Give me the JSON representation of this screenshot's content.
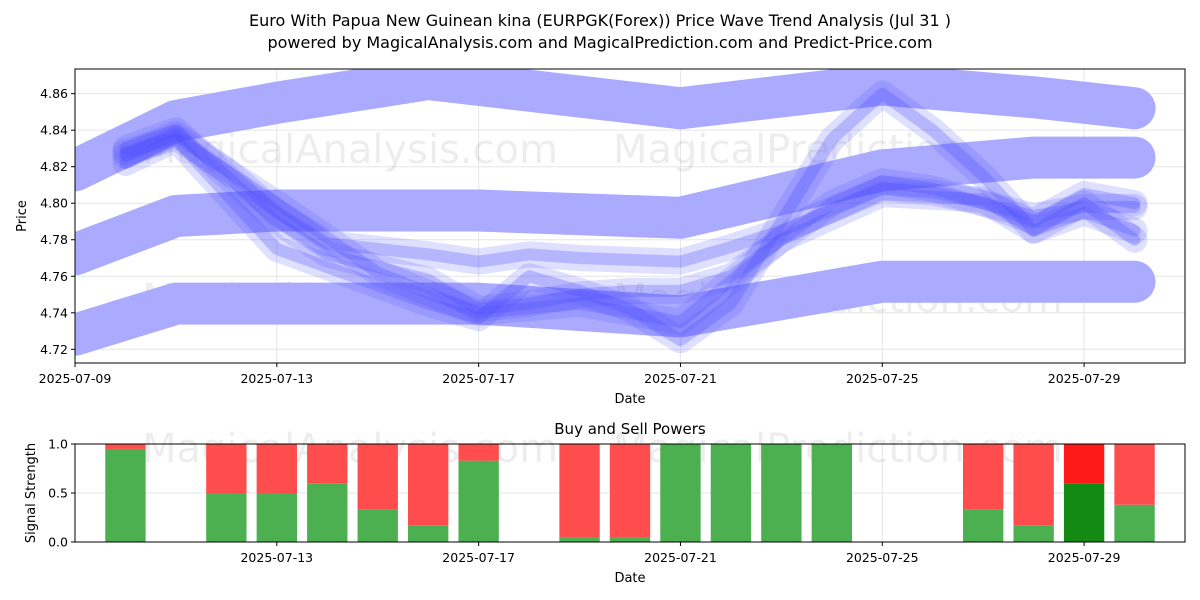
{
  "title_line1": "Euro With Papua New Guinean kina (EURPGK(Forex)) Price Wave Trend Analysis (Jul 31 )",
  "title_line2": "powered by MagicalAnalysis.com and MagicalPrediction.com and Predict-Price.com",
  "watermarks": [
    "MagicalAnalysis.com",
    "MagicalPrediction.com"
  ],
  "colors": {
    "band": "#aaaaff",
    "wave": "#4d4dff",
    "buy": "#4caf50",
    "sell": "#ff4d4d",
    "buy_strong": "#138a13",
    "sell_strong": "#ff1a1a"
  },
  "chart_data": [
    {
      "type": "line",
      "title": "",
      "xlabel": "Date",
      "ylabel": "Price",
      "x_ticks": [
        "2025-07-09",
        "2025-07-13",
        "2025-07-17",
        "2025-07-21",
        "2025-07-25",
        "2025-07-29"
      ],
      "y_ticks": [
        "4.72",
        "4.74",
        "4.76",
        "4.78",
        "4.80",
        "4.82",
        "4.84",
        "4.86"
      ],
      "ylim": [
        4.7125,
        4.8735
      ],
      "xlim": [
        "2025-07-09",
        "2025-07-31"
      ],
      "grid": true,
      "bands": [
        {
          "name": "upper",
          "x": [
            "2025-07-09",
            "2025-07-11",
            "2025-07-13",
            "2025-07-16",
            "2025-07-21",
            "2025-07-25",
            "2025-07-28",
            "2025-07-30"
          ],
          "y": [
            4.818,
            4.845,
            4.855,
            4.868,
            4.852,
            4.865,
            4.858,
            4.852
          ]
        },
        {
          "name": "middle",
          "x": [
            "2025-07-09",
            "2025-07-11",
            "2025-07-13",
            "2025-07-17",
            "2025-07-21",
            "2025-07-25",
            "2025-07-28",
            "2025-07-30"
          ],
          "y": [
            4.772,
            4.793,
            4.796,
            4.796,
            4.792,
            4.818,
            4.825,
            4.825
          ]
        },
        {
          "name": "lower",
          "x": [
            "2025-07-09",
            "2025-07-11",
            "2025-07-13",
            "2025-07-17",
            "2025-07-21",
            "2025-07-25",
            "2025-07-28",
            "2025-07-30"
          ],
          "y": [
            4.728,
            4.745,
            4.745,
            4.745,
            4.738,
            4.757,
            4.757,
            4.757
          ]
        }
      ],
      "series": [
        {
          "x": [
            "2025-07-10",
            "2025-07-11",
            "2025-07-12",
            "2025-07-13",
            "2025-07-14",
            "2025-07-16",
            "2025-07-17",
            "2025-07-18",
            "2025-07-19",
            "2025-07-21",
            "2025-07-22",
            "2025-07-23",
            "2025-07-25",
            "2025-07-26",
            "2025-07-27",
            "2025-07-28",
            "2025-07-29",
            "2025-07-30"
          ],
          "y": [
            4.826,
            4.838,
            4.818,
            4.795,
            4.778,
            4.772,
            4.768,
            4.772,
            4.77,
            4.768,
            4.776,
            4.785,
            4.808,
            4.806,
            4.8,
            4.793,
            4.798,
            4.798
          ]
        },
        {
          "x": [
            "2025-07-10",
            "2025-07-11",
            "2025-07-12",
            "2025-07-13",
            "2025-07-15",
            "2025-07-16",
            "2025-07-17",
            "2025-07-18",
            "2025-07-19",
            "2025-07-20",
            "2025-07-21",
            "2025-07-22",
            "2025-07-23",
            "2025-07-24",
            "2025-07-25",
            "2025-07-26",
            "2025-07-27",
            "2025-07-28",
            "2025-07-29",
            "2025-07-30"
          ],
          "y": [
            4.822,
            4.835,
            4.805,
            4.775,
            4.755,
            4.745,
            4.737,
            4.76,
            4.752,
            4.742,
            4.725,
            4.745,
            4.79,
            4.835,
            4.86,
            4.84,
            4.815,
            4.785,
            4.795,
            4.785
          ]
        },
        {
          "x": [
            "2025-07-10",
            "2025-07-11",
            "2025-07-12",
            "2025-07-13",
            "2025-07-14",
            "2025-07-16",
            "2025-07-17",
            "2025-07-18",
            "2025-07-19",
            "2025-07-20",
            "2025-07-21",
            "2025-07-22",
            "2025-07-24",
            "2025-07-25",
            "2025-07-26",
            "2025-07-27",
            "2025-07-28",
            "2025-07-29",
            "2025-07-30"
          ],
          "y": [
            4.83,
            4.84,
            4.815,
            4.79,
            4.772,
            4.758,
            4.742,
            4.745,
            4.75,
            4.752,
            4.752,
            4.76,
            4.8,
            4.812,
            4.808,
            4.8,
            4.79,
            4.805,
            4.8
          ]
        },
        {
          "x": [
            "2025-07-10",
            "2025-07-11",
            "2025-07-13",
            "2025-07-15",
            "2025-07-17",
            "2025-07-19",
            "2025-07-21",
            "2025-07-23",
            "2025-07-25",
            "2025-07-27",
            "2025-07-28",
            "2025-07-29",
            "2025-07-30"
          ],
          "y": [
            4.828,
            4.836,
            4.8,
            4.762,
            4.74,
            4.745,
            4.735,
            4.78,
            4.805,
            4.802,
            4.785,
            4.8,
            4.78
          ]
        }
      ]
    },
    {
      "type": "bar",
      "title": "Buy and Sell Powers",
      "xlabel": "Date",
      "ylabel": "Signal Strength",
      "x_ticks": [
        "2025-07-13",
        "2025-07-17",
        "2025-07-21",
        "2025-07-25",
        "2025-07-29"
      ],
      "y_ticks": [
        "0.0",
        "0.5",
        "1.0"
      ],
      "ylim": [
        0,
        1
      ],
      "xlim": [
        "2025-07-09",
        "2025-07-31"
      ],
      "grid": true,
      "categories": [
        "2025-07-10",
        "2025-07-12",
        "2025-07-13",
        "2025-07-14",
        "2025-07-15",
        "2025-07-16",
        "2025-07-17",
        "2025-07-19",
        "2025-07-20",
        "2025-07-21",
        "2025-07-22",
        "2025-07-23",
        "2025-07-24",
        "2025-07-27",
        "2025-07-28",
        "2025-07-29",
        "2025-07-30"
      ],
      "series": [
        {
          "name": "Buy",
          "values": [
            0.95,
            0.5,
            0.5,
            0.6,
            0.33,
            0.17,
            0.83,
            0.05,
            0.05,
            1.0,
            1.0,
            1.0,
            1.0,
            0.33,
            0.17,
            0.6,
            0.38
          ]
        },
        {
          "name": "Sell",
          "values": [
            0.05,
            0.5,
            0.5,
            0.4,
            0.67,
            0.83,
            0.17,
            0.95,
            0.95,
            0.0,
            0.0,
            0.0,
            0.0,
            0.67,
            0.83,
            0.4,
            0.62
          ]
        }
      ]
    }
  ]
}
